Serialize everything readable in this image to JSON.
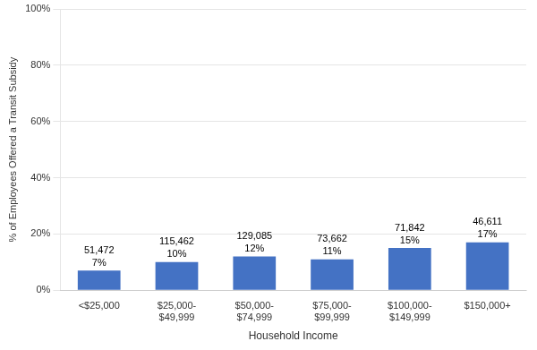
{
  "chart_data": {
    "type": "bar",
    "categories": [
      "<$25,000",
      "$25,000-\n$49,999",
      "$50,000-\n$74,999",
      "$75,000-\n$99,999",
      "$100,000-\n$149,999",
      "$150,000+"
    ],
    "values": [
      7,
      10,
      12,
      11,
      15,
      17
    ],
    "value_labels": [
      "7%",
      "10%",
      "12%",
      "11%",
      "15%",
      "17%"
    ],
    "counts": [
      "51,472",
      "115,462",
      "129,085",
      "73,662",
      "71,842",
      "46,611"
    ],
    "color": "#4472C4",
    "x_label": "Household Income",
    "y_label": "% of Employees Offered a Transit Subsidy",
    "ylim": [
      0,
      100
    ],
    "yticks": [
      {
        "value": 0,
        "label": "0%"
      },
      {
        "value": 20,
        "label": "20%"
      },
      {
        "value": 40,
        "label": "40%"
      },
      {
        "value": 60,
        "label": "60%"
      },
      {
        "value": 80,
        "label": "80%"
      },
      {
        "value": 100,
        "label": "100%"
      }
    ],
    "grid": true,
    "data_labels": true
  }
}
